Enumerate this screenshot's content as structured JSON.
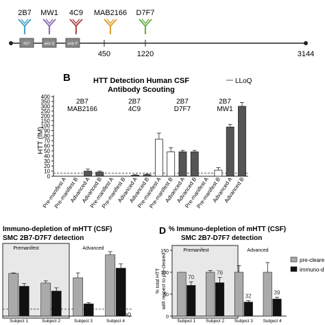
{
  "antibody_map": {
    "antibodies": [
      {
        "name": "2B7",
        "color": "#4aa3c8"
      },
      {
        "name": "MW1",
        "color": "#8a6fb0"
      },
      {
        "name": "4C9",
        "color": "#b04a4a"
      },
      {
        "name": "MAB2166",
        "color": "#e0a030"
      },
      {
        "name": "D7F7",
        "color": "#6bb04a"
      }
    ],
    "domains": [
      "N17",
      "poly Q",
      "poly P"
    ],
    "positions": [
      "450",
      "1220",
      "3144"
    ]
  },
  "panel_b": {
    "letter": "B",
    "title_line1": "HTT Detection Human  CSF",
    "title_line2": "Antibody Scouting",
    "lloq_legend": "LLoQ",
    "ylabel": "HTT (fM)",
    "group_labels": [
      [
        "2B7",
        "MAB2166"
      ],
      [
        "2B7",
        "4C9"
      ],
      [
        "2B7",
        "D7F7"
      ],
      [
        "2B7",
        "MW1"
      ]
    ]
  },
  "panel_c": {
    "title_line1": "Immuno-depletion of mHTT (CSF)",
    "title_line2": "SMC 2B7-D7F7 detection",
    "premanifest": "Premanifest",
    "advanced": "Advanced",
    "lloq": "LLoQ"
  },
  "panel_d": {
    "letter": "D",
    "title_line1": "% Immuno-depletion of mHTT (CSF)",
    "title_line2": "SMC 2B7-D7F7 detection",
    "premanifest": "Premanifest",
    "advanced": "Advanced",
    "ylabel_line1": "% total HTT",
    "ylabel_line2": "with respect to pre-cleared",
    "legend": [
      "pre-cleare",
      "immuno-d"
    ]
  },
  "chart_data": [
    {
      "type": "bar",
      "title": "HTT Detection Human  CSF Antibody Scouting",
      "ylabel": "HTT (fM)",
      "y_scale": "split",
      "yticks_lower": [
        0,
        10,
        20,
        30,
        40,
        50,
        60,
        70,
        80,
        90,
        100
      ],
      "yticks_upper": [
        100,
        150,
        200,
        250,
        300,
        350,
        400
      ],
      "categories": [
        "Pre-manifest A",
        "Pre-manifest B",
        "Advanced A",
        "Advanced B",
        "Pre-manifest A",
        "Pre-manifest B",
        "Advanced A",
        "Advanced B",
        "Pre-manifest A",
        "Pre-manifest B",
        "Advanced A",
        "Advanced B",
        "Pre-manifest A",
        "Pre-manifest B",
        "Advanced A",
        "Advanced B"
      ],
      "groups": [
        "2B7 MAB2166",
        "2B7 4C9",
        "2B7 D7F7",
        "2B7 MW1"
      ],
      "values": [
        0,
        0,
        10,
        8,
        0,
        0,
        2,
        3,
        73,
        48,
        48,
        48,
        0,
        12,
        97,
        300
      ],
      "errors": [
        0,
        0,
        4,
        2,
        0,
        0,
        1,
        1,
        12,
        8,
        3,
        3,
        0,
        5,
        15,
        40
      ],
      "fill": [
        "w",
        "w",
        "d",
        "d",
        "w",
        "w",
        "d",
        "d",
        "w",
        "w",
        "d",
        "d",
        "w",
        "w",
        "d",
        "d"
      ],
      "lloq": 6
    },
    {
      "type": "bar",
      "title": "Immuno-depletion of mHTT (CSF) SMC 2B7-D7F7 detection",
      "categories": [
        "Subject 1",
        "Subject 2",
        "Subject 3",
        "Subject 4"
      ],
      "series": [
        {
          "name": "pre-cleared",
          "values": [
            80,
            62,
            72,
            115
          ],
          "errors": [
            1,
            4,
            9,
            6
          ]
        },
        {
          "name": "immuno-depleted",
          "values": [
            56,
            47,
            23,
            90
          ],
          "errors": [
            5,
            6,
            2,
            8
          ]
        }
      ],
      "ylim": [
        0,
        130
      ],
      "lloq": 13
    },
    {
      "type": "bar",
      "title": "% Immuno-depletion of mHTT (CSF) SMC 2B7-D7F7 detection",
      "ylabel": "% total HTT with respect to pre-cleared",
      "categories": [
        "Subject 1",
        "Subject 2",
        "Subject 3",
        "Subject 4"
      ],
      "series": [
        {
          "name": "pre-cleared",
          "values": [
            100,
            100,
            100,
            100
          ],
          "errors": [
            0,
            4,
            15,
            22
          ]
        },
        {
          "name": "immuno-depleted",
          "values": [
            70,
            76,
            32,
            39
          ],
          "errors": [
            8,
            12,
            3,
            4
          ]
        }
      ],
      "data_labels": [
        "70",
        "76",
        "32",
        "39"
      ],
      "ylim": [
        0,
        150
      ],
      "yticks": [
        0,
        50,
        100,
        150
      ]
    }
  ]
}
